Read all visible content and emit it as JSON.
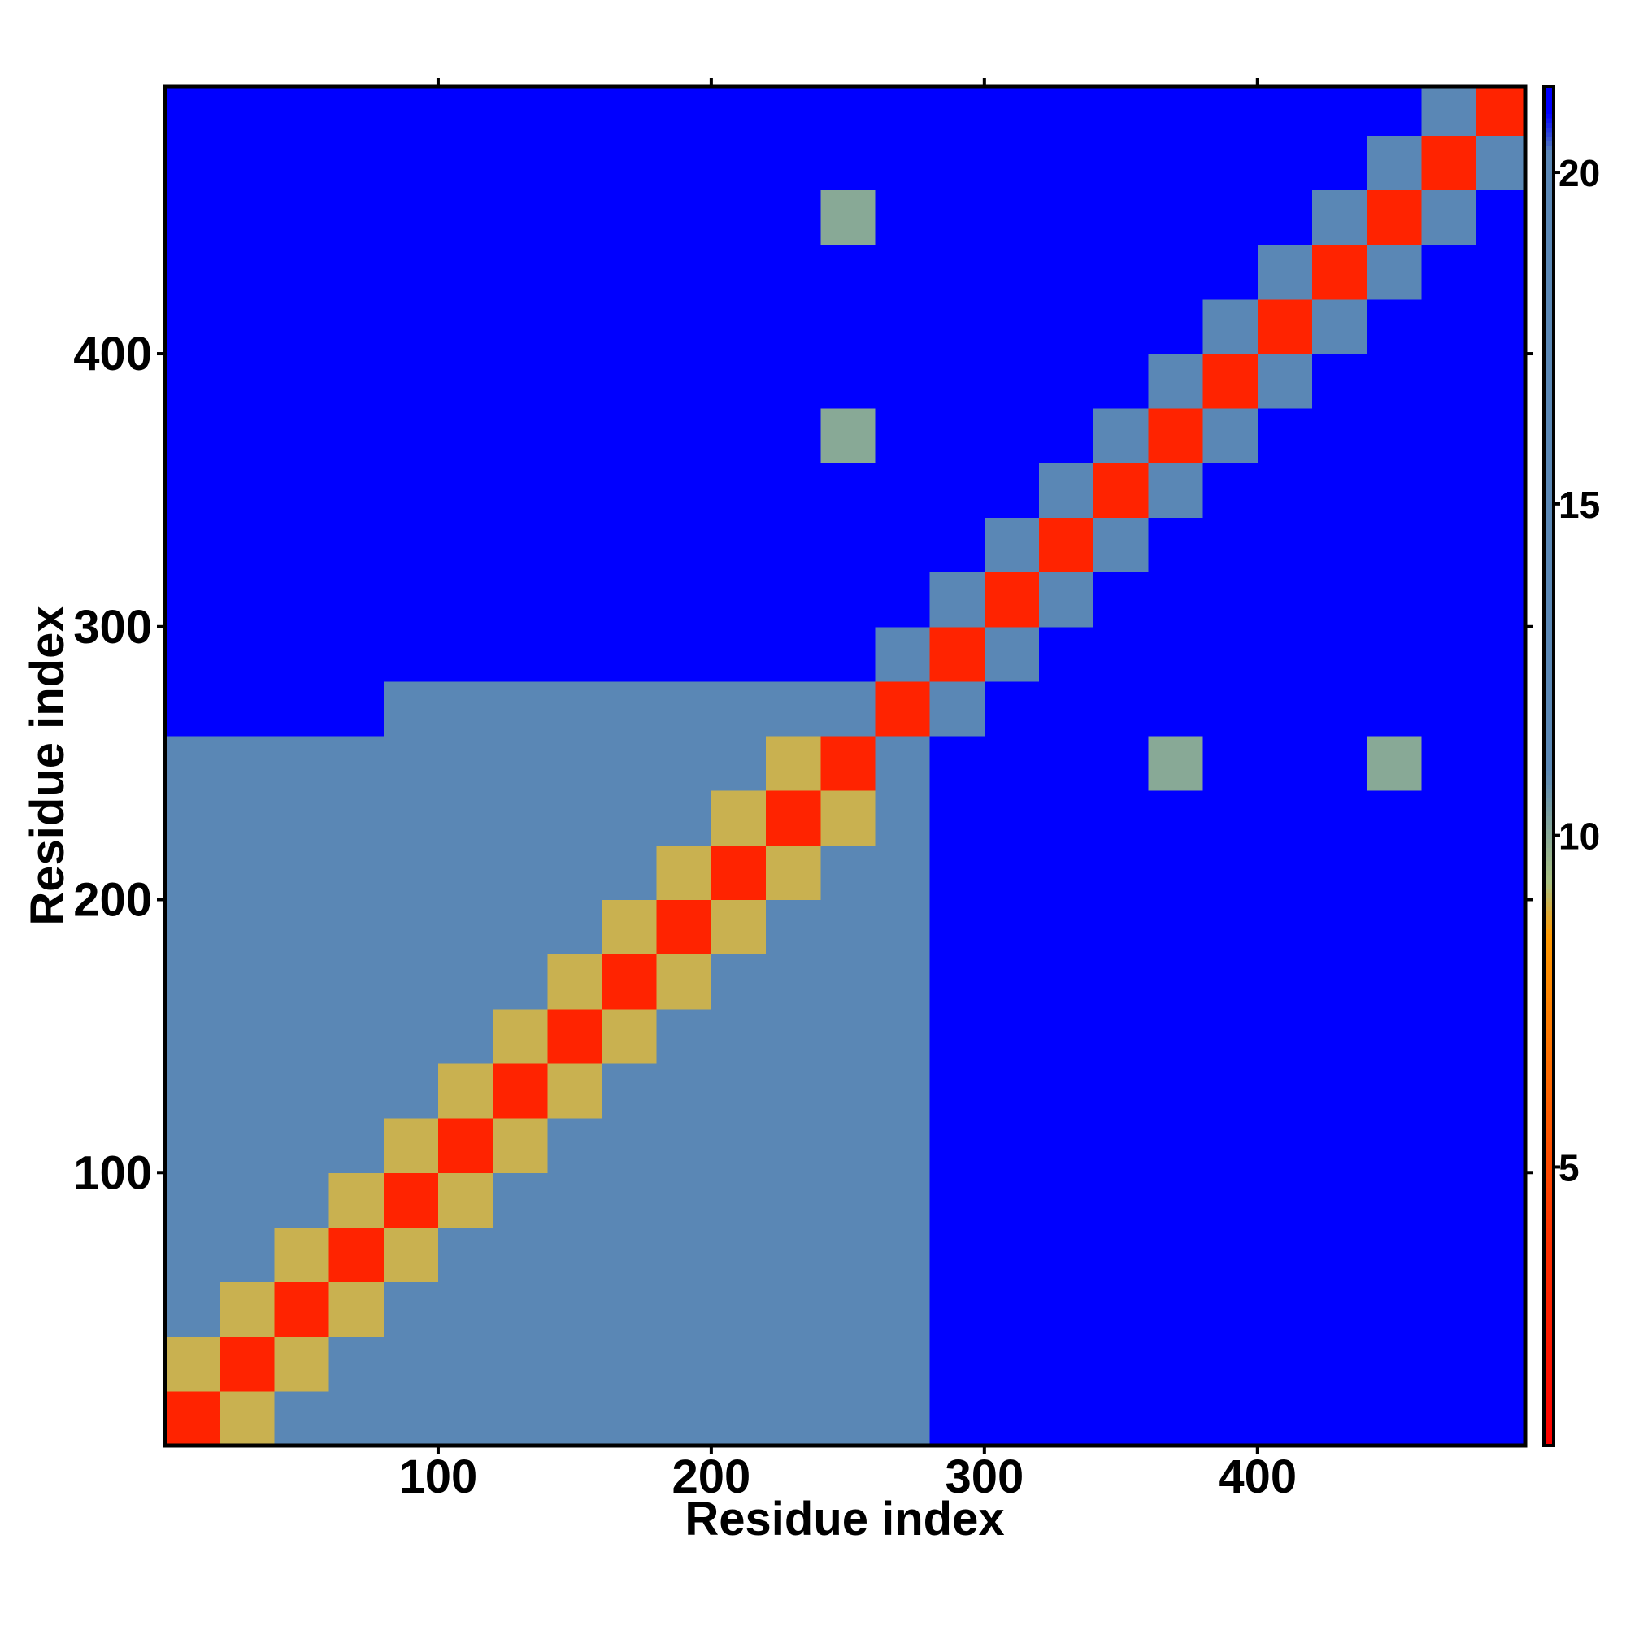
{
  "chart_data": {
    "type": "heatmap",
    "x_label": "Residue index",
    "y_label": "Residue index",
    "x": [
      10,
      30,
      50,
      70,
      90,
      110,
      130,
      150,
      170,
      190,
      210,
      230,
      250,
      270,
      290,
      310,
      330,
      350,
      370,
      390,
      410,
      430,
      450,
      470,
      490
    ],
    "y": [
      10,
      30,
      50,
      70,
      90,
      110,
      130,
      150,
      170,
      190,
      210,
      230,
      250,
      270,
      290,
      310,
      330,
      350,
      370,
      390,
      410,
      430,
      450,
      470,
      490
    ],
    "z": [
      [
        3,
        9,
        12,
        15,
        15,
        15,
        15,
        15,
        15,
        15,
        15,
        15,
        15,
        19,
        21,
        21,
        21,
        21,
        21,
        21,
        21,
        21,
        21,
        21,
        21
      ],
      [
        9,
        3,
        9,
        12,
        15,
        15,
        15,
        15,
        15,
        15,
        15,
        15,
        15,
        19,
        21,
        21,
        21,
        21,
        21,
        21,
        21,
        21,
        21,
        21,
        21
      ],
      [
        12,
        9,
        3,
        9,
        12,
        15,
        15,
        15,
        15,
        15,
        15,
        15,
        15,
        19,
        21,
        21,
        21,
        21,
        21,
        21,
        21,
        21,
        21,
        21,
        21
      ],
      [
        15,
        12,
        9,
        3,
        9,
        12,
        15,
        15,
        15,
        15,
        15,
        15,
        15,
        19,
        21,
        21,
        21,
        21,
        21,
        21,
        21,
        21,
        21,
        21,
        21
      ],
      [
        15,
        15,
        12,
        9,
        3,
        9,
        12,
        15,
        15,
        15,
        15,
        15,
        15,
        19,
        21,
        21,
        21,
        21,
        21,
        21,
        21,
        21,
        21,
        21,
        21
      ],
      [
        15,
        15,
        15,
        12,
        9,
        3,
        9,
        12,
        15,
        15,
        15,
        15,
        15,
        19,
        21,
        21,
        21,
        21,
        21,
        21,
        21,
        21,
        21,
        21,
        21
      ],
      [
        15,
        15,
        15,
        15,
        12,
        9,
        3,
        9,
        12,
        15,
        15,
        15,
        15,
        19,
        21,
        21,
        21,
        21,
        21,
        21,
        21,
        21,
        21,
        21,
        21
      ],
      [
        15,
        15,
        15,
        15,
        15,
        12,
        9,
        3,
        9,
        12,
        15,
        15,
        15,
        19,
        21,
        21,
        21,
        21,
        21,
        21,
        21,
        21,
        21,
        21,
        21
      ],
      [
        15,
        15,
        15,
        15,
        15,
        15,
        12,
        9,
        3,
        9,
        12,
        15,
        15,
        19,
        21,
        21,
        21,
        21,
        21,
        21,
        21,
        21,
        21,
        21,
        21
      ],
      [
        18,
        18,
        18,
        18,
        15,
        15,
        15,
        12,
        9,
        3,
        9,
        12,
        15,
        19,
        21,
        21,
        21,
        21,
        21,
        21,
        21,
        21,
        21,
        21,
        21
      ],
      [
        18,
        18,
        18,
        18,
        15,
        15,
        15,
        15,
        12,
        9,
        3,
        9,
        12,
        19,
        21,
        21,
        21,
        21,
        21,
        21,
        21,
        21,
        21,
        21,
        21
      ],
      [
        18,
        18,
        18,
        18,
        15,
        15,
        15,
        15,
        15,
        12,
        9,
        3,
        9,
        19,
        21,
        21,
        21,
        21,
        21,
        21,
        21,
        21,
        21,
        21,
        21
      ],
      [
        19,
        19,
        19,
        19,
        15,
        15,
        15,
        15,
        15,
        15,
        12,
        9,
        3,
        16,
        21,
        21,
        21,
        21,
        10,
        21,
        21,
        21,
        10,
        21,
        21
      ],
      [
        21,
        21,
        21,
        21,
        19,
        19,
        19,
        19,
        19,
        19,
        19,
        19,
        16,
        3,
        16,
        21,
        21,
        21,
        21,
        21,
        21,
        21,
        21,
        21,
        21
      ],
      [
        21,
        21,
        21,
        21,
        21,
        21,
        21,
        21,
        21,
        21,
        21,
        21,
        21,
        16,
        3,
        16,
        21,
        21,
        21,
        21,
        21,
        21,
        21,
        21,
        21
      ],
      [
        21,
        21,
        21,
        21,
        21,
        21,
        21,
        21,
        21,
        21,
        21,
        21,
        21,
        21,
        16,
        3,
        16,
        21,
        21,
        21,
        21,
        21,
        21,
        21,
        21
      ],
      [
        21,
        21,
        21,
        21,
        21,
        21,
        21,
        21,
        21,
        21,
        21,
        21,
        21,
        21,
        21,
        16,
        3,
        16,
        21,
        21,
        21,
        21,
        21,
        21,
        21
      ],
      [
        21,
        21,
        21,
        21,
        21,
        21,
        21,
        21,
        21,
        21,
        21,
        21,
        21,
        21,
        21,
        21,
        16,
        3,
        16,
        21,
        21,
        21,
        21,
        21,
        21
      ],
      [
        21,
        21,
        21,
        21,
        21,
        21,
        21,
        21,
        21,
        21,
        21,
        21,
        10,
        21,
        21,
        21,
        21,
        16,
        3,
        16,
        21,
        21,
        21,
        21,
        21
      ],
      [
        21,
        21,
        21,
        21,
        21,
        21,
        21,
        21,
        21,
        21,
        21,
        21,
        21,
        21,
        21,
        21,
        21,
        21,
        16,
        3,
        16,
        21,
        21,
        21,
        21
      ],
      [
        21,
        21,
        21,
        21,
        21,
        21,
        21,
        21,
        21,
        21,
        21,
        21,
        21,
        21,
        21,
        21,
        21,
        21,
        21,
        16,
        3,
        16,
        21,
        21,
        21
      ],
      [
        21,
        21,
        21,
        21,
        21,
        21,
        21,
        21,
        21,
        21,
        21,
        21,
        21,
        21,
        21,
        21,
        21,
        21,
        21,
        21,
        16,
        3,
        16,
        21,
        21
      ],
      [
        21,
        21,
        21,
        21,
        21,
        21,
        21,
        21,
        21,
        21,
        21,
        21,
        10,
        21,
        21,
        21,
        21,
        21,
        21,
        21,
        21,
        12,
        3,
        12,
        21
      ],
      [
        21,
        21,
        21,
        21,
        21,
        21,
        21,
        21,
        21,
        21,
        21,
        21,
        21,
        21,
        21,
        21,
        21,
        21,
        21,
        21,
        21,
        21,
        16,
        3,
        16
      ],
      [
        21,
        21,
        21,
        21,
        21,
        21,
        21,
        21,
        21,
        21,
        21,
        21,
        21,
        21,
        21,
        21,
        21,
        21,
        21,
        21,
        21,
        21,
        21,
        16,
        3
      ]
    ],
    "xlim": [
      0,
      498
    ],
    "ylim": [
      0,
      498
    ],
    "xticks": [
      100,
      200,
      300,
      400
    ],
    "yticks": [
      100,
      200,
      300,
      400
    ],
    "clim": [
      0.8,
      21.3
    ],
    "cticks": [
      5,
      10,
      15,
      20
    ],
    "colorscale": [
      [
        0.8,
        "#ff0000"
      ],
      [
        4,
        "#ff3300"
      ],
      [
        8.5,
        "#ff9900"
      ],
      [
        9.3,
        "#a8c080"
      ],
      [
        11,
        "#5a87b5"
      ],
      [
        20.3,
        "#5a87b5"
      ],
      [
        20.9,
        "#0000ff"
      ]
    ]
  }
}
